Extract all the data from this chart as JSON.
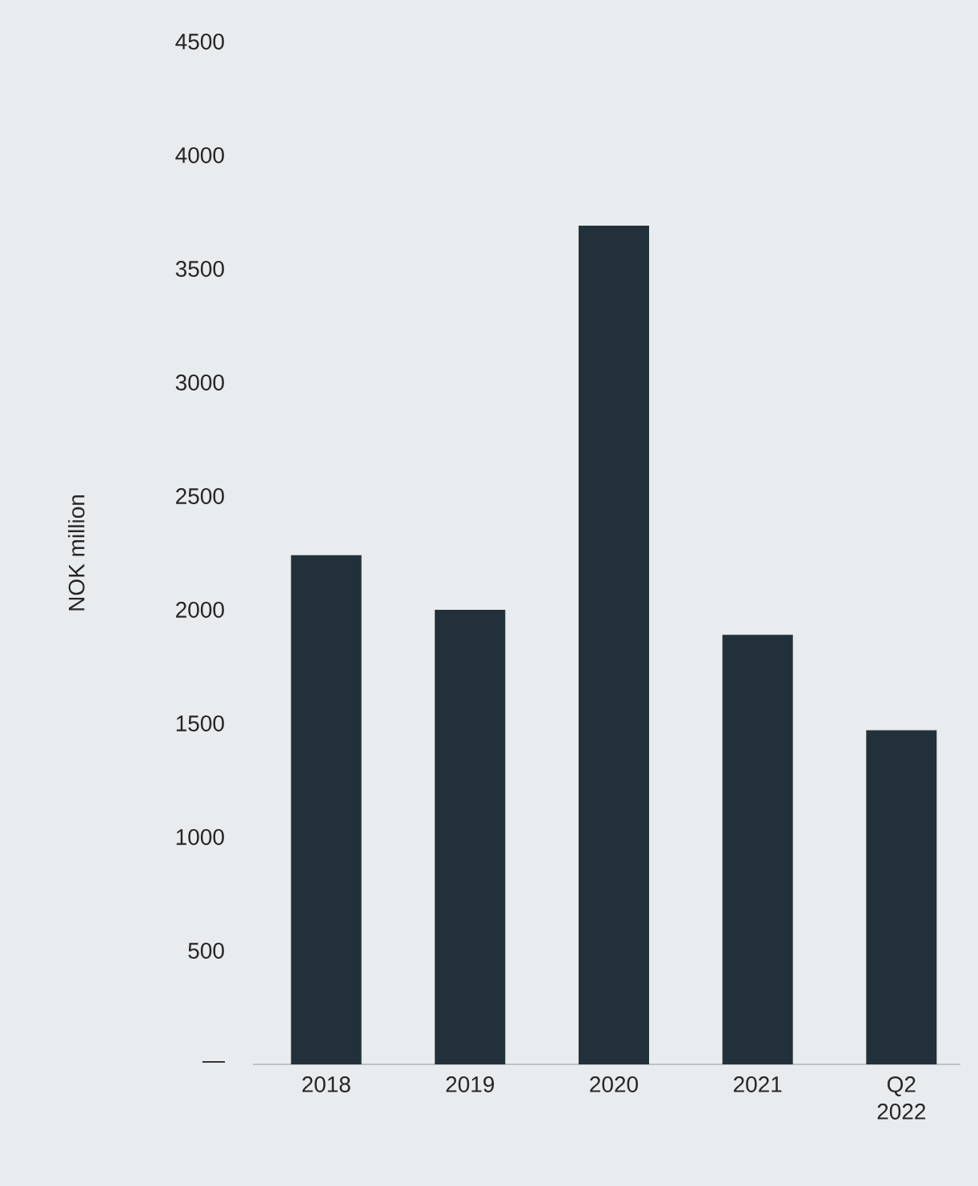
{
  "chart_data": {
    "type": "bar",
    "ylabel": "NOK million",
    "categories": [
      "2018",
      "2019",
      "2020",
      "2021",
      "Q2 2022"
    ],
    "values": [
      2240,
      2000,
      3690,
      1890,
      1470
    ],
    "color": "#22303a",
    "ylim": [
      0,
      4500
    ],
    "yticks": [
      {
        "value": 0,
        "label": "—"
      },
      500,
      1000,
      1500,
      2000,
      2500,
      3000,
      3500,
      4000,
      4500
    ]
  }
}
